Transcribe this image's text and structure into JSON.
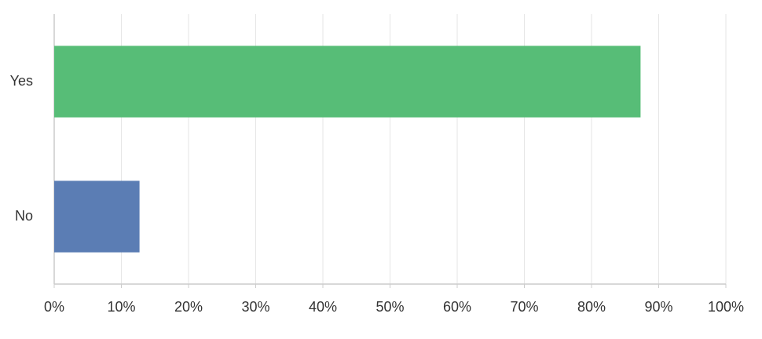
{
  "chart_data": {
    "type": "hbar",
    "categories": [
      "Yes",
      "No"
    ],
    "values": [
      87.3,
      12.7
    ],
    "colors": [
      "#57bd77",
      "#5b7db4"
    ],
    "xlim": [
      0,
      100
    ],
    "xticks": [
      {
        "value": 0,
        "label": "0%"
      },
      {
        "value": 10,
        "label": "10%"
      },
      {
        "value": 20,
        "label": "20%"
      },
      {
        "value": 30,
        "label": "30%"
      },
      {
        "value": 40,
        "label": "40%"
      },
      {
        "value": 50,
        "label": "50%"
      },
      {
        "value": 60,
        "label": "60%"
      },
      {
        "value": 70,
        "label": "70%"
      },
      {
        "value": 80,
        "label": "80%"
      },
      {
        "value": 90,
        "label": "90%"
      },
      {
        "value": 100,
        "label": "100%"
      }
    ],
    "grid": true
  }
}
